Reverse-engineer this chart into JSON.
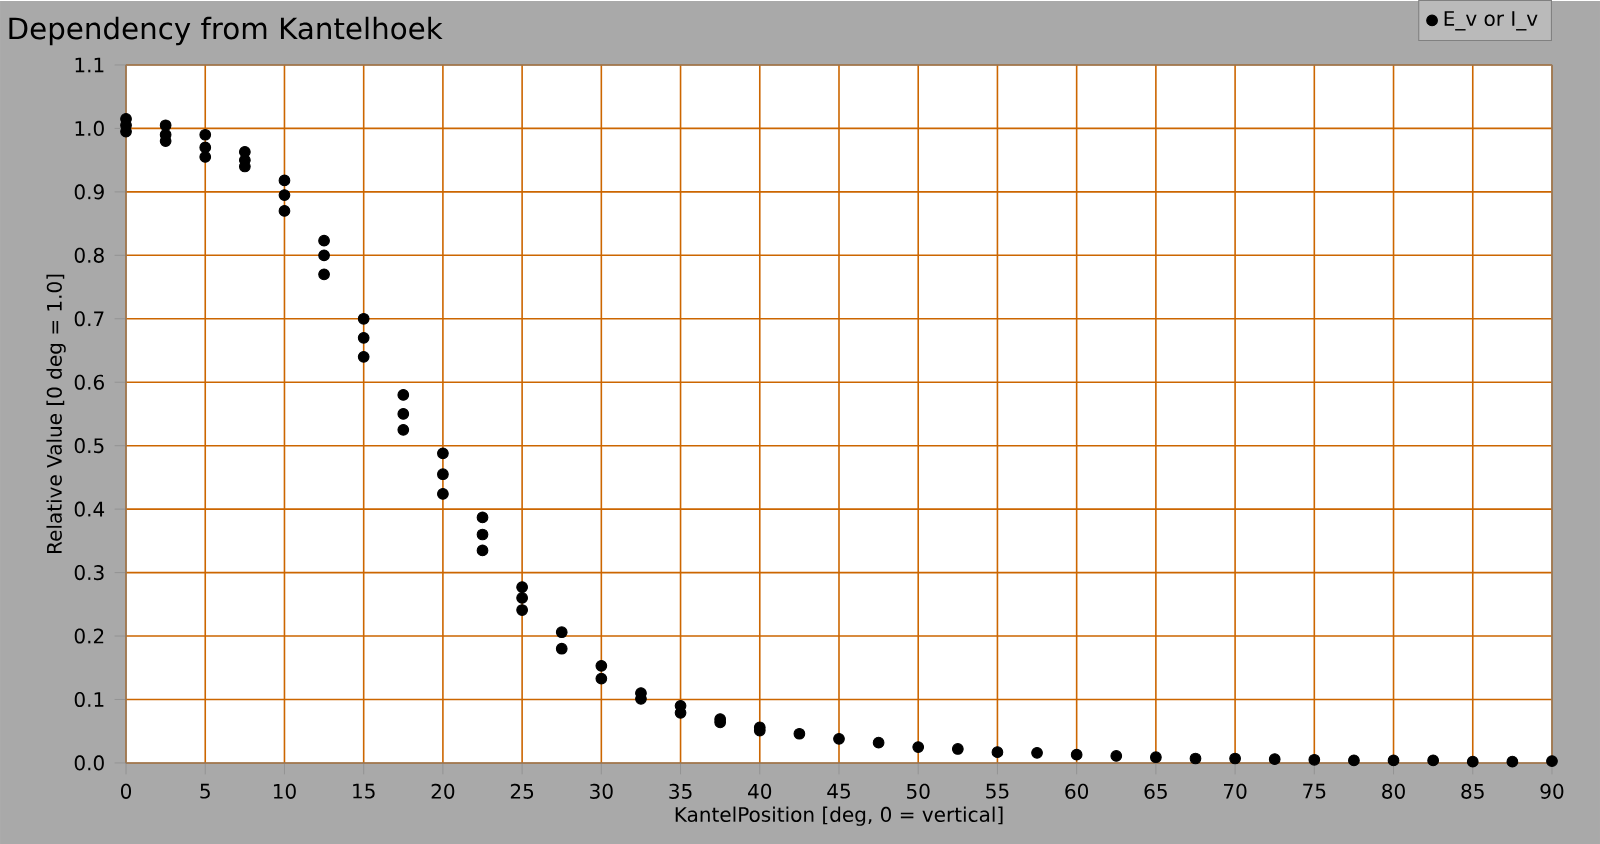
{
  "chart_data": {
    "type": "scatter",
    "title": "Dependency from Kantelhoek",
    "xlabel": "KantelPosition [deg, 0 = vertical]",
    "ylabel": "Relative Value [0 deg = 1.0]",
    "xlim": [
      0,
      90
    ],
    "ylim": [
      0,
      1.1
    ],
    "xticks": [
      0,
      5,
      10,
      15,
      20,
      25,
      30,
      35,
      40,
      45,
      50,
      55,
      60,
      65,
      70,
      75,
      80,
      85,
      90
    ],
    "yticks": [
      {
        "value": 0,
        "label": "0.0"
      },
      0.1,
      0.2,
      0.3,
      0.4,
      0.5,
      0.6,
      0.7,
      0.8,
      0.9,
      {
        "value": 1,
        "label": "1.0"
      },
      1.1
    ],
    "grid": true,
    "legend": "top right",
    "marker": "circle",
    "series": [
      {
        "name": "E_v or I_v",
        "color": "#000000",
        "x": [
          0,
          0,
          0,
          2.5,
          2.5,
          2.5,
          5,
          5,
          5,
          7.5,
          7.5,
          7.5,
          10,
          10,
          10,
          12.5,
          12.5,
          12.5,
          15,
          15,
          15,
          17.5,
          17.5,
          17.5,
          20,
          20,
          20,
          22.5,
          22.5,
          22.5,
          25,
          25,
          25,
          27.5,
          27.5,
          30,
          30,
          32.5,
          32.5,
          35,
          35,
          37.5,
          37.5,
          40,
          40,
          42.5,
          45,
          47.5,
          50,
          52.5,
          55,
          57.5,
          60,
          62.5,
          65,
          67.5,
          70,
          72.5,
          75,
          77.5,
          80,
          82.5,
          85,
          87.5,
          90
        ],
        "values": [
          1.015,
          1.005,
          0.995,
          1.005,
          0.99,
          0.98,
          0.99,
          0.97,
          0.955,
          0.963,
          0.95,
          0.94,
          0.918,
          0.895,
          0.87,
          0.823,
          0.8,
          0.77,
          0.7,
          0.67,
          0.64,
          0.58,
          0.55,
          0.525,
          0.488,
          0.455,
          0.424,
          0.387,
          0.36,
          0.335,
          0.277,
          0.26,
          0.241,
          0.206,
          0.18,
          0.153,
          0.133,
          0.11,
          0.101,
          0.09,
          0.079,
          0.069,
          0.064,
          0.056,
          0.051,
          0.046,
          0.038,
          0.032,
          0.025,
          0.022,
          0.017,
          0.016,
          0.013,
          0.011,
          0.009,
          0.007,
          0.007,
          0.006,
          0.005,
          0.004,
          0.004,
          0.004,
          0.002,
          0.002,
          0.003
        ]
      }
    ]
  }
}
